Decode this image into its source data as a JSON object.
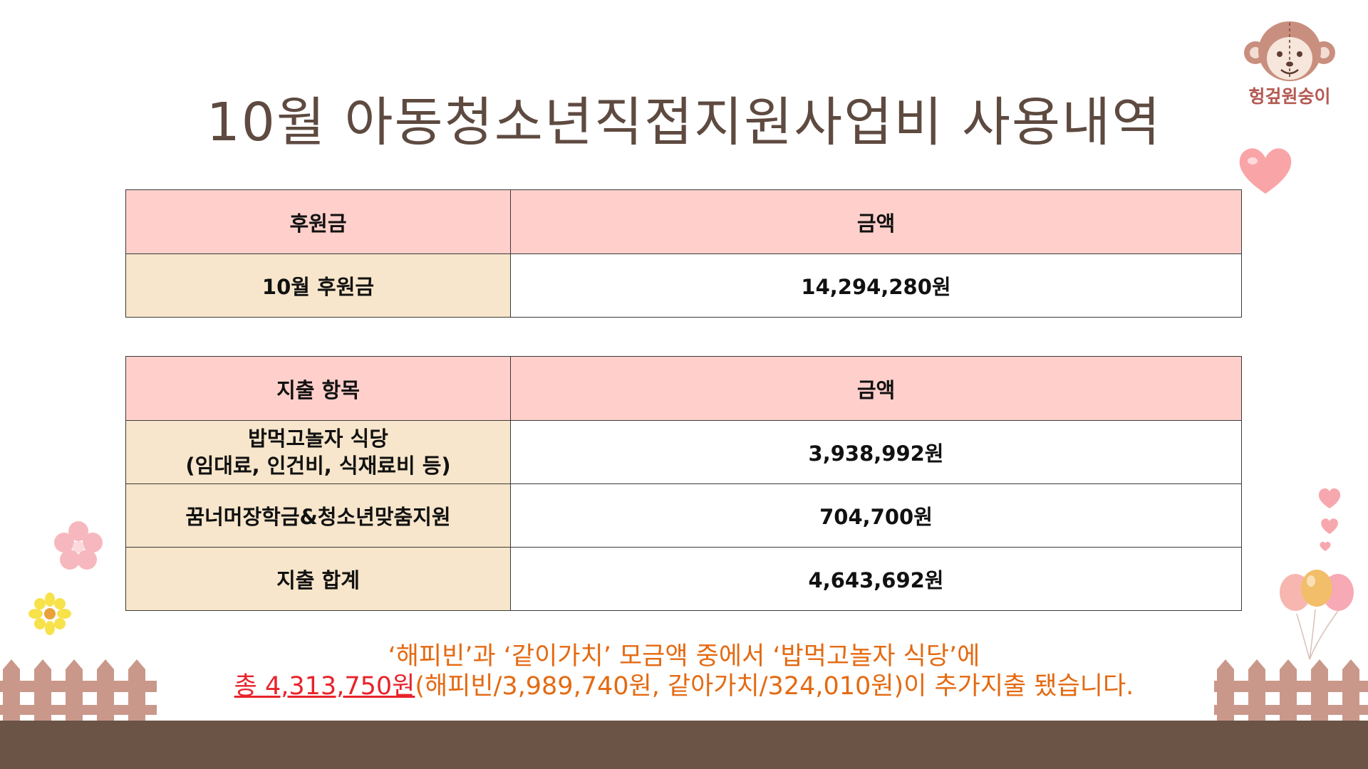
{
  "title": "10월 아동청소년직접지원사업비 사용내역",
  "logo": {
    "name": "헝겊원숭이"
  },
  "income_table": {
    "headers": [
      "후원금",
      "금액"
    ],
    "rows": [
      {
        "item": "10월 후원금",
        "amount": "14,294,280원"
      }
    ]
  },
  "expense_table": {
    "headers": [
      "지출 항목",
      "금액"
    ],
    "rows": [
      {
        "item_line1": "밥먹고놀자 식당",
        "item_line2": "(임대료, 인건비, 식재료비 등)",
        "amount": "3,938,992원"
      },
      {
        "item": "꿈너머장학금&청소년맞춤지원",
        "amount": "704,700원"
      },
      {
        "item": "지출 합계",
        "amount": "4,643,692원"
      }
    ]
  },
  "note": {
    "line1": "‘해피빈’과 ‘같이가치’ 모금액 중에서 ‘밥먹고놀자 식당’에",
    "line2_highlight": "총 4,313,750원",
    "line2_rest": "(해피빈/3,989,740원, 같아가치/324,010원)이 추가지출 됐습니다."
  },
  "colors": {
    "title": "#5e4a40",
    "header_bg": "#ffd0cb",
    "label_bg": "#f7e6cb",
    "note": "#e46a12",
    "highlight": "#e8232b",
    "ground": "#6b5446",
    "fence": "#c9988a"
  }
}
